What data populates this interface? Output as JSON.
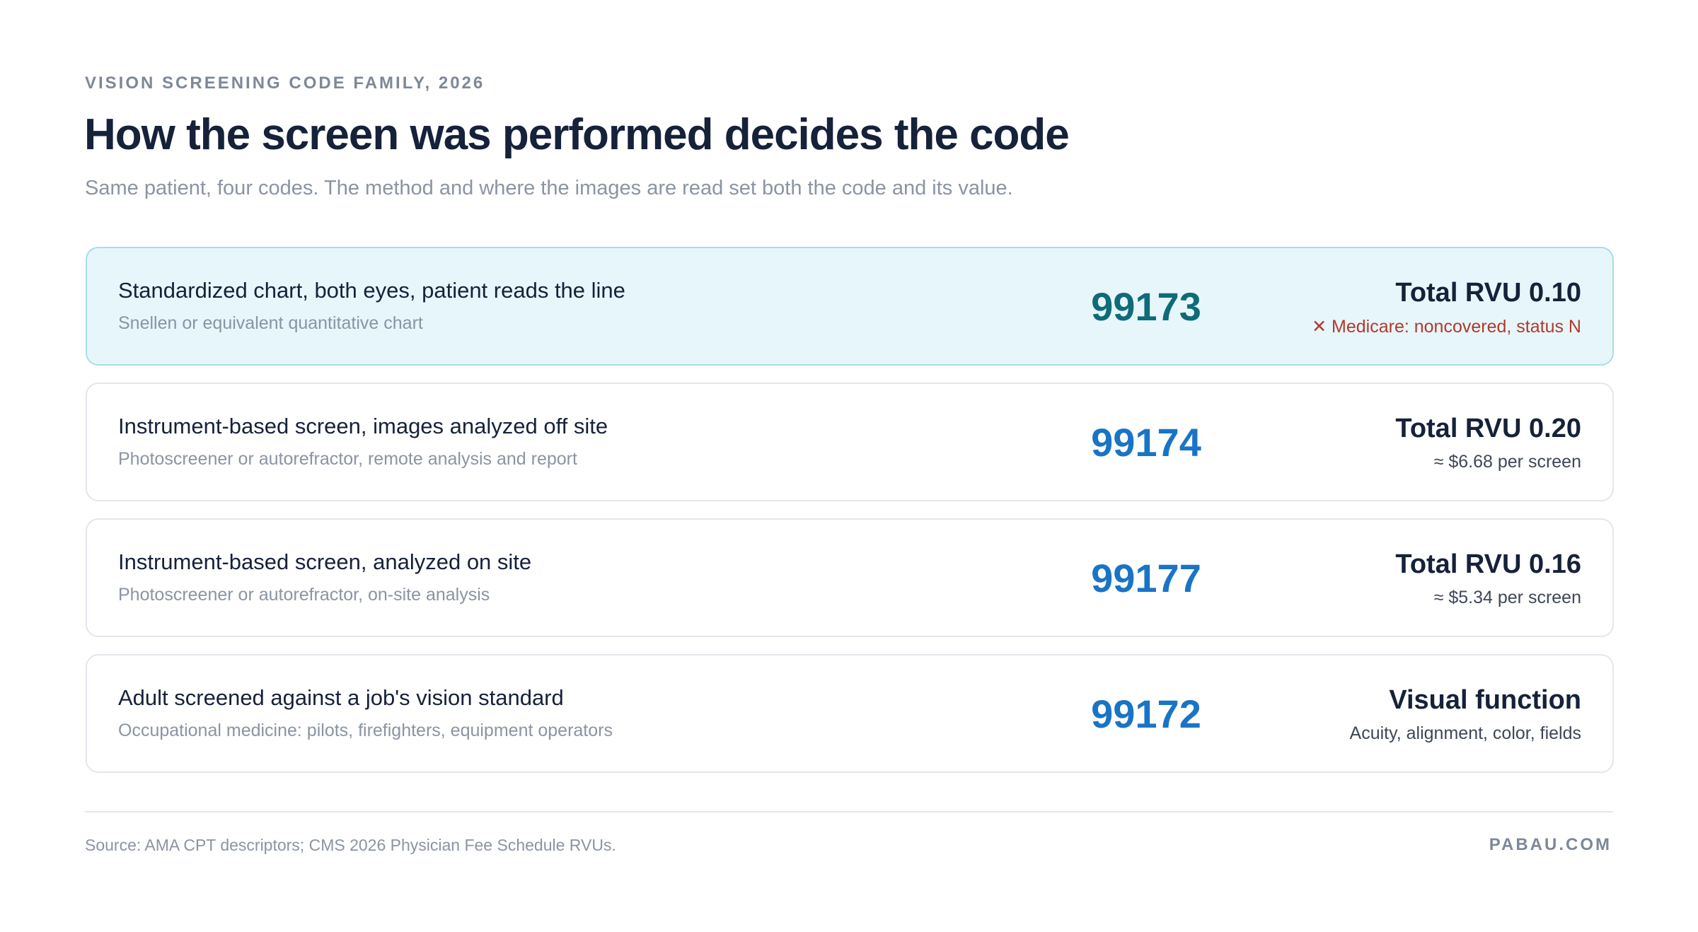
{
  "header": {
    "eyebrow": "VISION SCREENING CODE FAMILY, 2026",
    "title": "How the screen was performed decides the code",
    "subtitle": "Same patient, four codes. The method and where the images are read set both the code and its value."
  },
  "rows": [
    {
      "label": "Standardized chart, both eyes, patient reads the line",
      "sub": "Snellen or equivalent quantitative chart",
      "code": "99173",
      "value": "Total RVU 0.10",
      "note": "✕ Medicare: noncovered, status N"
    },
    {
      "label": "Instrument-based screen, images analyzed off site",
      "sub": "Photoscreener or autorefractor, remote analysis and report",
      "code": "99174",
      "value": "Total RVU 0.20",
      "note": "≈ $6.68 per screen"
    },
    {
      "label": "Instrument-based screen, analyzed on site",
      "sub": "Photoscreener or autorefractor, on-site analysis",
      "code": "99177",
      "value": "Total RVU 0.16",
      "note": "≈ $5.34 per screen"
    },
    {
      "label": "Adult screened against a job's vision standard",
      "sub": "Occupational medicine: pilots, firefighters, equipment operators",
      "code": "99172",
      "value": "Visual function",
      "note": "Acuity, alignment, color, fields"
    }
  ],
  "footer": {
    "source": "Source: AMA CPT descriptors; CMS 2026 Physician Fee Schedule RVUs.",
    "brand": "PABAU.COM"
  }
}
